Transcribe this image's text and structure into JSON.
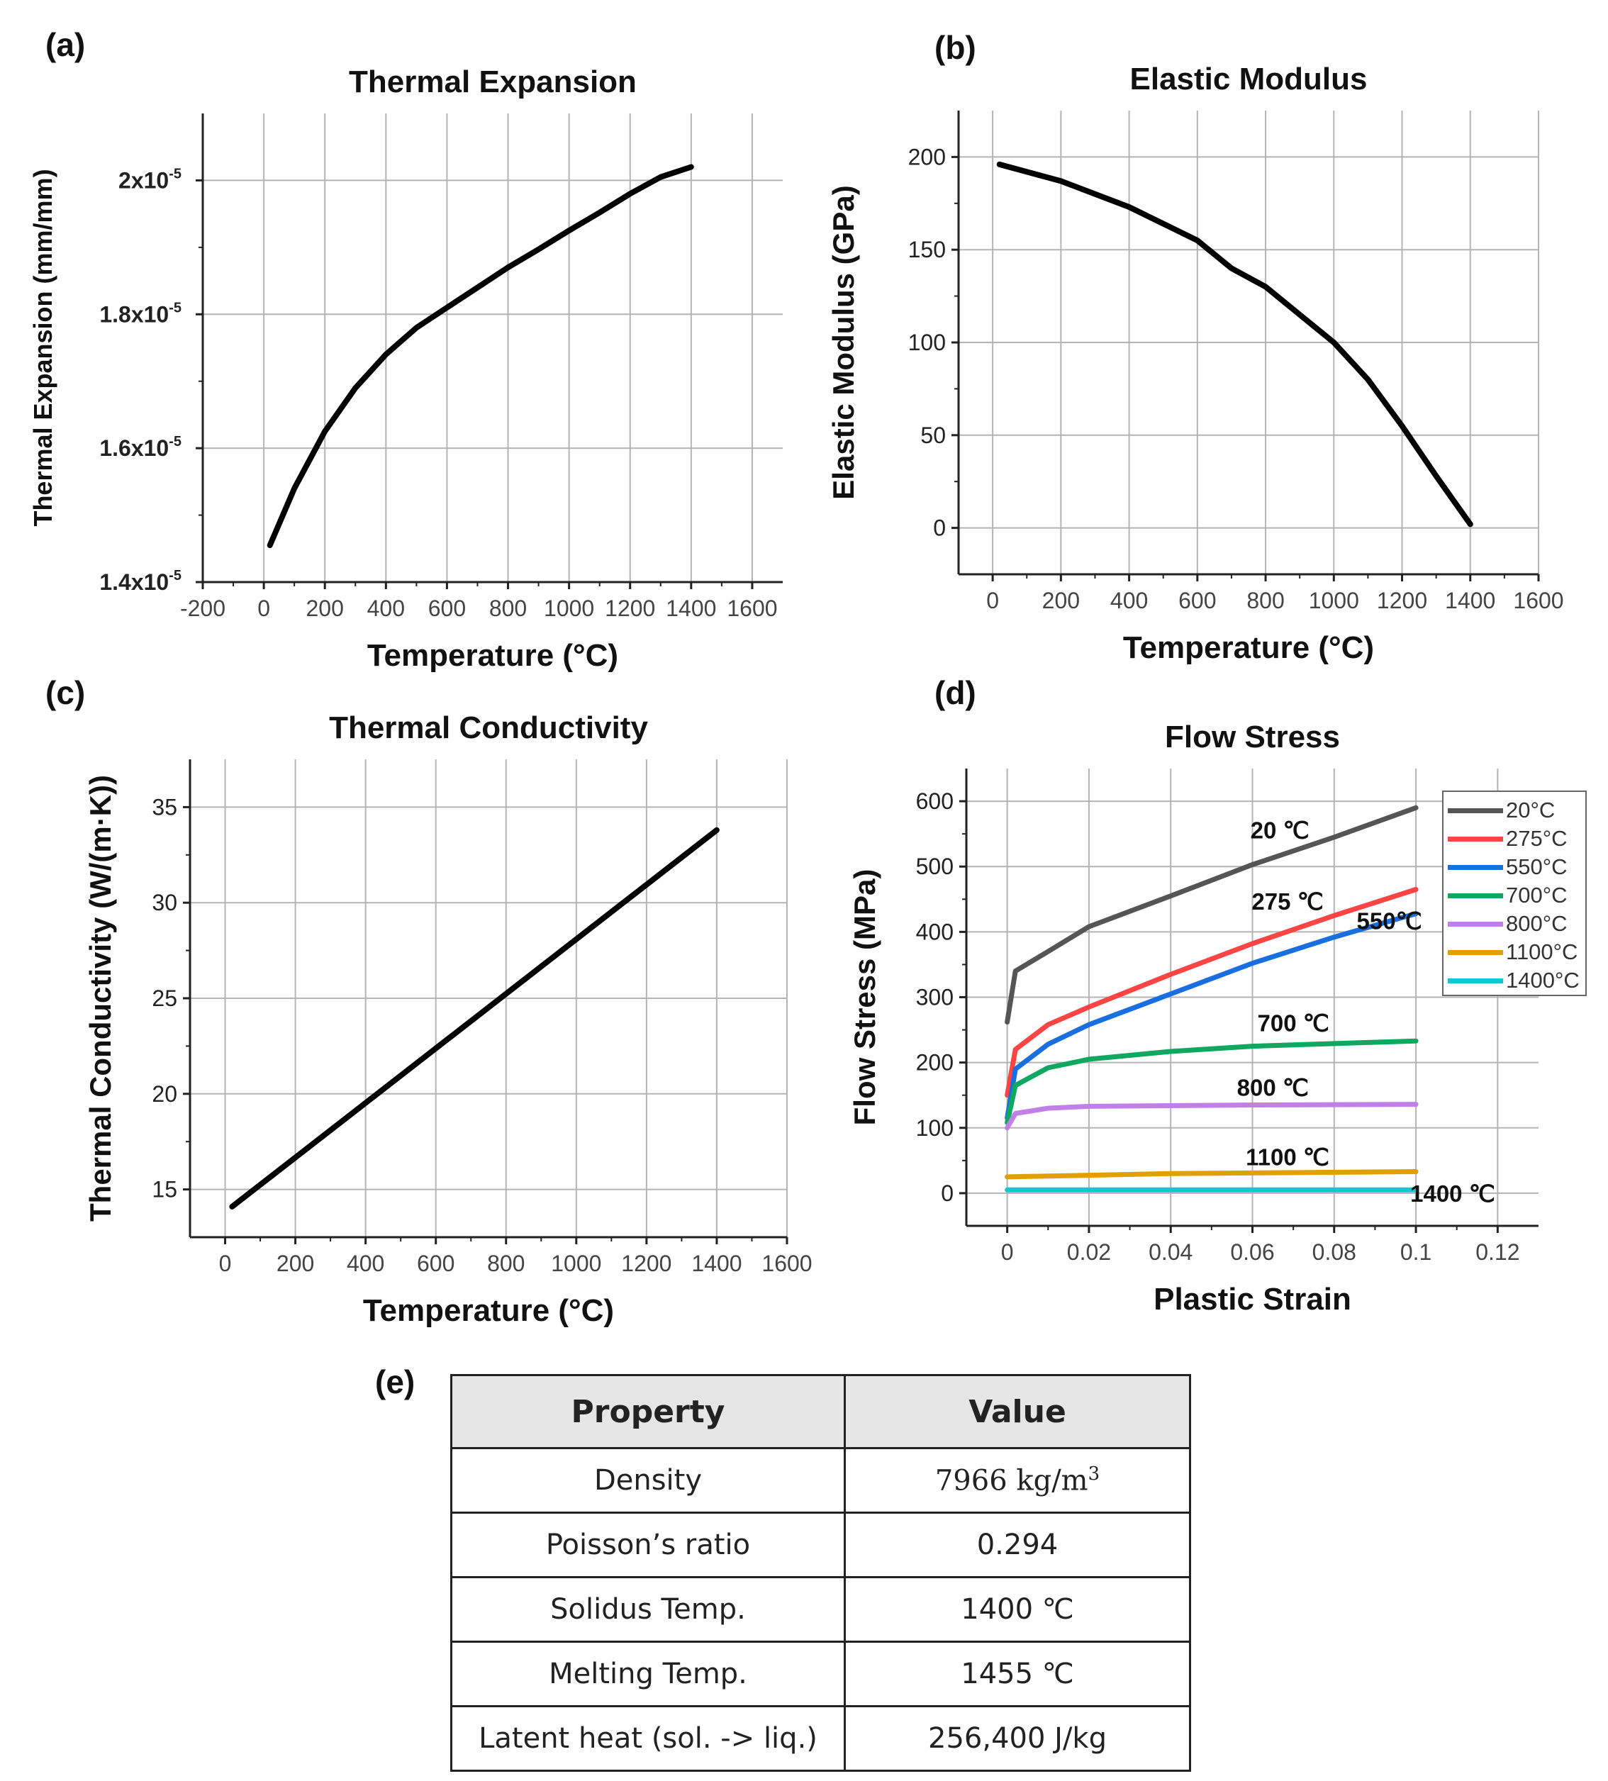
{
  "panel_labels": {
    "a": "(a)",
    "b": "(b)",
    "c": "(c)",
    "d": "(d)",
    "e": "(e)"
  },
  "chart_data": [
    {
      "id": "a",
      "type": "line",
      "title": "Thermal Expansion",
      "xlabel": "Temperature (°C)",
      "ylabel": "Thermal Expansion (mm/mm)",
      "xlim": [
        -200,
        1700
      ],
      "ylim": [
        1.4e-05,
        2.1e-05
      ],
      "xticks": [
        -200,
        0,
        200,
        400,
        600,
        800,
        1000,
        1200,
        1400,
        1600
      ],
      "yticks": [
        1.4e-05,
        1.6e-05,
        1.8e-05,
        2e-05
      ],
      "ytick_labels": [
        {
          "base": "1.4x10",
          "exp": "-5"
        },
        {
          "base": "1.6x10",
          "exp": "-5"
        },
        {
          "base": "1.8x10",
          "exp": "-5"
        },
        {
          "base": "2x10",
          "exp": "-5"
        }
      ],
      "grid": true,
      "series": [
        {
          "name": "Thermal Expansion",
          "color": "#000000",
          "x": [
            20,
            100,
            200,
            300,
            400,
            500,
            600,
            700,
            800,
            900,
            1000,
            1100,
            1200,
            1300,
            1400
          ],
          "y": [
            1.455e-05,
            1.54e-05,
            1.625e-05,
            1.69e-05,
            1.74e-05,
            1.78e-05,
            1.81e-05,
            1.84e-05,
            1.87e-05,
            1.897e-05,
            1.925e-05,
            1.952e-05,
            1.98e-05,
            2.005e-05,
            2.02e-05
          ]
        }
      ]
    },
    {
      "id": "b",
      "type": "line",
      "title": "Elastic Modulus",
      "xlabel": "Temperature (°C)",
      "ylabel": "Elastic Modulus (GPa)",
      "xlim": [
        -100,
        1600
      ],
      "ylim": [
        -25,
        225
      ],
      "xticks": [
        0,
        200,
        400,
        600,
        800,
        1000,
        1200,
        1400,
        1600
      ],
      "yticks": [
        0,
        50,
        100,
        150,
        200
      ],
      "grid": true,
      "series": [
        {
          "name": "Elastic Modulus",
          "color": "#000000",
          "x": [
            20,
            200,
            400,
            600,
            700,
            800,
            900,
            1000,
            1100,
            1200,
            1300,
            1400
          ],
          "y": [
            196,
            187,
            173,
            155,
            140,
            130,
            115,
            100,
            80,
            55,
            28,
            2
          ]
        }
      ]
    },
    {
      "id": "c",
      "type": "line",
      "title": "Thermal Conductivity",
      "xlabel": "Temperature (°C)",
      "ylabel": "Thermal Conductivity (W/(m·K))",
      "xlim": [
        -100,
        1600
      ],
      "ylim": [
        12.5,
        37.5
      ],
      "xticks": [
        0,
        200,
        400,
        600,
        800,
        1000,
        1200,
        1400,
        1600
      ],
      "yticks": [
        15,
        20,
        25,
        30,
        35
      ],
      "grid": true,
      "series": [
        {
          "name": "Thermal Conductivity",
          "color": "#000000",
          "x": [
            20,
            1400
          ],
          "y": [
            14.1,
            33.8
          ]
        }
      ]
    },
    {
      "id": "d",
      "type": "line",
      "title": "Flow Stress",
      "xlabel": "Plastic Strain",
      "ylabel": "Flow Stress (MPa)",
      "xlim": [
        -0.01,
        0.13
      ],
      "ylim": [
        -50,
        650
      ],
      "xticks": [
        0,
        0.02,
        0.04,
        0.06,
        0.08,
        0.1,
        0.12
      ],
      "yticks": [
        0,
        100,
        200,
        300,
        400,
        500,
        600
      ],
      "grid": true,
      "legend": "top-right",
      "series": [
        {
          "name": "20°C",
          "color": "#555555",
          "x": [
            0,
            0.002,
            0.01,
            0.02,
            0.04,
            0.06,
            0.08,
            0.1
          ],
          "y": [
            262,
            340,
            370,
            408,
            455,
            503,
            545,
            590
          ]
        },
        {
          "name": "275°C",
          "color": "#ff4444",
          "x": [
            0,
            0.002,
            0.01,
            0.02,
            0.04,
            0.06,
            0.08,
            0.1
          ],
          "y": [
            150,
            220,
            258,
            285,
            335,
            382,
            425,
            465
          ]
        },
        {
          "name": "550°C",
          "color": "#1a6fe0",
          "x": [
            0,
            0.002,
            0.01,
            0.02,
            0.04,
            0.06,
            0.08,
            0.1
          ],
          "y": [
            115,
            190,
            228,
            258,
            305,
            352,
            392,
            428
          ]
        },
        {
          "name": "700°C",
          "color": "#10a860",
          "x": [
            0,
            0.002,
            0.01,
            0.02,
            0.04,
            0.06,
            0.08,
            0.1
          ],
          "y": [
            108,
            165,
            192,
            205,
            217,
            225,
            229,
            233
          ]
        },
        {
          "name": "800°C",
          "color": "#c080e8",
          "x": [
            0,
            0.002,
            0.01,
            0.02,
            0.06,
            0.1
          ],
          "y": [
            100,
            122,
            130,
            133,
            135,
            136
          ]
        },
        {
          "name": "1100°C",
          "color": "#e0a000",
          "x": [
            0,
            0.04,
            0.1
          ],
          "y": [
            25,
            30,
            33
          ]
        },
        {
          "name": "1400°C",
          "color": "#10c8d0",
          "x": [
            0,
            0.1
          ],
          "y": [
            5,
            5
          ]
        }
      ],
      "annotations": [
        {
          "text": "20 ℃",
          "x": 0.0667,
          "y": 556
        },
        {
          "text": "275 ℃",
          "x": 0.0686,
          "y": 447
        },
        {
          "text": "550℃",
          "x": 0.0935,
          "y": 417
        },
        {
          "text": "700 ℃",
          "x": 0.07,
          "y": 261
        },
        {
          "text": "800 ℃",
          "x": 0.065,
          "y": 162
        },
        {
          "text": "1100 ℃",
          "x": 0.0686,
          "y": 56
        },
        {
          "text": "1400 ℃",
          "x": 0.109,
          "y": 0
        }
      ]
    }
  ],
  "table": {
    "headers": [
      "Property",
      "Value"
    ],
    "rows": [
      {
        "property": "Density",
        "value_num": "7966",
        "value_unit": "kg/m",
        "value_exp": "3"
      },
      {
        "property": "Poisson’s ratio",
        "value": "0.294"
      },
      {
        "property": "Solidus Temp.",
        "value": "1400 ℃"
      },
      {
        "property": "Melting Temp.",
        "value": "1455 ℃"
      },
      {
        "property": "Latent heat (sol. -> liq.)",
        "value": "256,400 J/kg"
      }
    ]
  }
}
